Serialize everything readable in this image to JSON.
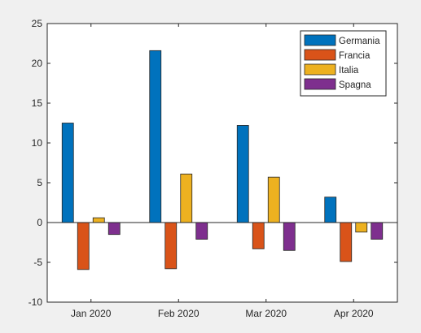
{
  "chart_data": {
    "type": "bar",
    "title": "",
    "xlabel": "",
    "ylabel": "",
    "categories": [
      "Jan 2020",
      "Feb 2020",
      "Mar 2020",
      "Apr 2020"
    ],
    "ylim": [
      -10,
      25
    ],
    "yticks": [
      -10,
      -5,
      0,
      5,
      10,
      15,
      20,
      25
    ],
    "grid": false,
    "legend_position": "top-right",
    "series": [
      {
        "name": "Germania",
        "color": "#0072BD",
        "values": [
          12.5,
          21.6,
          12.2,
          3.2
        ]
      },
      {
        "name": "Francia",
        "color": "#D95319",
        "values": [
          -5.9,
          -5.8,
          -3.3,
          -4.9
        ]
      },
      {
        "name": "Italia",
        "color": "#EDB120",
        "values": [
          0.6,
          6.1,
          5.7,
          -1.2
        ]
      },
      {
        "name": "Spagna",
        "color": "#7E2F8E",
        "values": [
          -1.5,
          -2.1,
          -3.5,
          -2.1
        ]
      }
    ]
  }
}
